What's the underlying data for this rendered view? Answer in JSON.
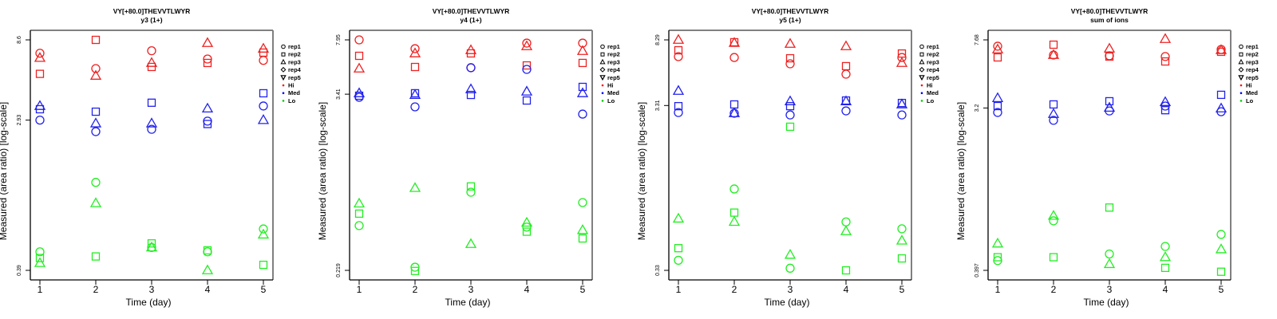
{
  "chart_data": [
    {
      "type": "scatter",
      "title": "VY[+80.0]THEVVTLWYR",
      "subtitle": "y3 (1+)",
      "xlabel": "Time (day)",
      "ylabel": "Measured (area ratio) [log-scale]",
      "yscale": "log",
      "xlim": [
        1,
        5
      ],
      "ylim": [
        0.39,
        8.6
      ],
      "x_ticks": [
        "1",
        "2",
        "3",
        "4",
        "5"
      ],
      "y_ticks": [
        "0.39",
        "2.93",
        "8.6"
      ],
      "legend_position": "right",
      "series": [
        {
          "name": "Hi",
          "rep": "rep1",
          "values": [
            7.19,
            5.85,
            7.43,
            6.65,
            6.53
          ]
        },
        {
          "name": "Hi",
          "rep": "rep2",
          "values": [
            5.45,
            8.6,
            5.98,
            6.31,
            7.25
          ]
        },
        {
          "name": "Hi",
          "rep": "rep3",
          "values": [
            6.75,
            5.31,
            6.31,
            8.24,
            7.64
          ]
        },
        {
          "name": "Med",
          "rep": "rep1",
          "values": [
            2.93,
            2.51,
            2.59,
            2.89,
            3.54
          ]
        },
        {
          "name": "Med",
          "rep": "rep2",
          "values": [
            3.39,
            3.28,
            3.7,
            2.78,
            4.2
          ]
        },
        {
          "name": "Med",
          "rep": "rep3",
          "values": [
            3.54,
            2.8,
            2.8,
            3.42,
            2.93
          ]
        },
        {
          "name": "Lo",
          "rep": "rep1",
          "values": [
            0.5,
            1.27,
            0.53,
            0.5,
            0.68
          ]
        },
        {
          "name": "Lo",
          "rep": "rep2",
          "values": [
            0.46,
            0.47,
            0.56,
            0.51,
            0.42
          ]
        },
        {
          "name": "Lo",
          "rep": "rep3",
          "values": [
            0.43,
            0.96,
            0.53,
            0.39,
            0.63
          ]
        }
      ]
    },
    {
      "type": "scatter",
      "title": "VY[+80.0]THEVVTLWYR",
      "subtitle": "y4 (1+)",
      "xlabel": "Time (day)",
      "ylabel": "Measured (area ratio) [log-scale]",
      "yscale": "log",
      "xlim": [
        1,
        5
      ],
      "ylim": [
        0.219,
        7.95
      ],
      "x_ticks": [
        "1",
        "2",
        "3",
        "4",
        "5"
      ],
      "y_ticks": [
        "0.219",
        "3.41",
        "7.95"
      ],
      "legend_position": "right",
      "series": [
        {
          "name": "Hi",
          "rep": "rep1",
          "values": [
            7.95,
            6.93,
            5.15,
            7.56,
            7.56
          ]
        },
        {
          "name": "Hi",
          "rep": "rep2",
          "values": [
            6.2,
            5.21,
            6.44,
            5.34,
            5.55
          ]
        },
        {
          "name": "Hi",
          "rep": "rep3",
          "values": [
            5.08,
            6.44,
            6.77,
            7.2,
            6.68
          ]
        },
        {
          "name": "Med",
          "rep": "rep1",
          "values": [
            3.25,
            2.8,
            5.15,
            5.02,
            2.5
          ]
        },
        {
          "name": "Med",
          "rep": "rep2",
          "values": [
            3.33,
            3.46,
            3.37,
            3.09,
            3.82
          ]
        },
        {
          "name": "Med",
          "rep": "rep3",
          "values": [
            3.46,
            3.37,
            3.68,
            3.55,
            3.46
          ]
        },
        {
          "name": "Lo",
          "rep": "rep1",
          "values": [
            0.44,
            0.23,
            0.74,
            0.43,
            0.63
          ]
        },
        {
          "name": "Lo",
          "rep": "rep2",
          "values": [
            0.53,
            0.217,
            0.81,
            0.4,
            0.36
          ]
        },
        {
          "name": "Lo",
          "rep": "rep3",
          "values": [
            0.62,
            0.79,
            0.33,
            0.46,
            0.41
          ]
        }
      ]
    },
    {
      "type": "scatter",
      "title": "VY[+80.0]THEVVTLWYR",
      "subtitle": "y5 (1+)",
      "xlabel": "Time (day)",
      "ylabel": "Measured (area ratio) [log-scale]",
      "yscale": "log",
      "xlim": [
        1,
        5
      ],
      "ylim": [
        0.33,
        8.29
      ],
      "x_ticks": [
        "1",
        "2",
        "3",
        "4",
        "5"
      ],
      "y_ticks": [
        "0.33",
        "3.31",
        "8.29"
      ],
      "legend_position": "right",
      "series": [
        {
          "name": "Hi",
          "rep": "rep1",
          "values": [
            6.56,
            6.48,
            5.93,
            5.13,
            6.48
          ]
        },
        {
          "name": "Hi",
          "rep": "rep2",
          "values": [
            7.17,
            8.02,
            6.41,
            5.74,
            6.85
          ]
        },
        {
          "name": "Hi",
          "rep": "rep3",
          "values": [
            8.29,
            7.94,
            7.84,
            7.58,
            6.0
          ]
        },
        {
          "name": "Med",
          "rep": "rep1",
          "values": [
            3.0,
            2.97,
            2.9,
            3.07,
            2.9
          ]
        },
        {
          "name": "Med",
          "rep": "rep2",
          "values": [
            3.28,
            3.36,
            3.28,
            3.55,
            3.43
          ]
        },
        {
          "name": "Med",
          "rep": "rep3",
          "values": [
            4.06,
            2.97,
            3.51,
            3.51,
            3.36
          ]
        },
        {
          "name": "Lo",
          "rep": "rep1",
          "values": [
            0.38,
            1.03,
            0.34,
            0.65,
            0.59
          ]
        },
        {
          "name": "Lo",
          "rep": "rep2",
          "values": [
            0.45,
            0.74,
            2.46,
            0.33,
            0.39
          ]
        },
        {
          "name": "Lo",
          "rep": "rep3",
          "values": [
            0.68,
            0.65,
            0.41,
            0.57,
            0.5
          ]
        }
      ]
    },
    {
      "type": "scatter",
      "title": "VY[+80.0]THEVVTLWYR",
      "subtitle": "sum of ions",
      "xlabel": "Time (day)",
      "ylabel": "Measured (area ratio) [log-scale]",
      "yscale": "log",
      "xlim": [
        1,
        5
      ],
      "ylim": [
        0.397,
        7.68
      ],
      "x_ticks": [
        "1",
        "2",
        "3",
        "4",
        "5"
      ],
      "y_ticks": [
        "0.397",
        "3.2",
        "7.68"
      ],
      "legend_position": "right",
      "series": [
        {
          "name": "Hi",
          "rep": "rep1",
          "values": [
            7.08,
            6.32,
            6.26,
            6.2,
            6.79
          ]
        },
        {
          "name": "Hi",
          "rep": "rep2",
          "values": [
            6.13,
            7.22,
            6.2,
            5.82,
            6.59
          ]
        },
        {
          "name": "Hi",
          "rep": "rep3",
          "values": [
            6.79,
            6.32,
            6.86,
            7.76,
            6.73
          ]
        },
        {
          "name": "Med",
          "rep": "rep1",
          "values": [
            3.02,
            2.73,
            3.08,
            3.28,
            3.05
          ]
        },
        {
          "name": "Med",
          "rep": "rep2",
          "values": [
            3.28,
            3.35,
            3.49,
            3.11,
            3.79
          ]
        },
        {
          "name": "Med",
          "rep": "rep3",
          "values": [
            3.63,
            2.96,
            3.21,
            3.45,
            3.18
          ]
        },
        {
          "name": "Lo",
          "rep": "rep1",
          "values": [
            0.45,
            0.75,
            0.49,
            0.54,
            0.63
          ]
        },
        {
          "name": "Lo",
          "rep": "rep2",
          "values": [
            0.47,
            0.47,
            0.89,
            0.41,
            0.39
          ]
        },
        {
          "name": "Lo",
          "rep": "rep3",
          "values": [
            0.56,
            0.8,
            0.43,
            0.47,
            0.52
          ]
        }
      ]
    }
  ],
  "legend": {
    "entries": [
      {
        "label": "rep1",
        "symbol": "circle"
      },
      {
        "label": "rep2",
        "symbol": "square"
      },
      {
        "label": "rep3",
        "symbol": "triangle-up"
      },
      {
        "label": "rep4",
        "symbol": "diamond"
      },
      {
        "label": "rep5",
        "symbol": "triangle-down"
      },
      {
        "label": "Hi",
        "symbol": "dot",
        "color": "#ff0000"
      },
      {
        "label": "Med",
        "symbol": "dot",
        "color": "#0000ff"
      },
      {
        "label": "Lo",
        "symbol": "dot",
        "color": "#00cc00"
      }
    ]
  },
  "colors": {
    "Hi": "#ee2222",
    "Med": "#2222ee",
    "Lo": "#22ee22",
    "axis": "#000000",
    "frame": "#808080"
  }
}
